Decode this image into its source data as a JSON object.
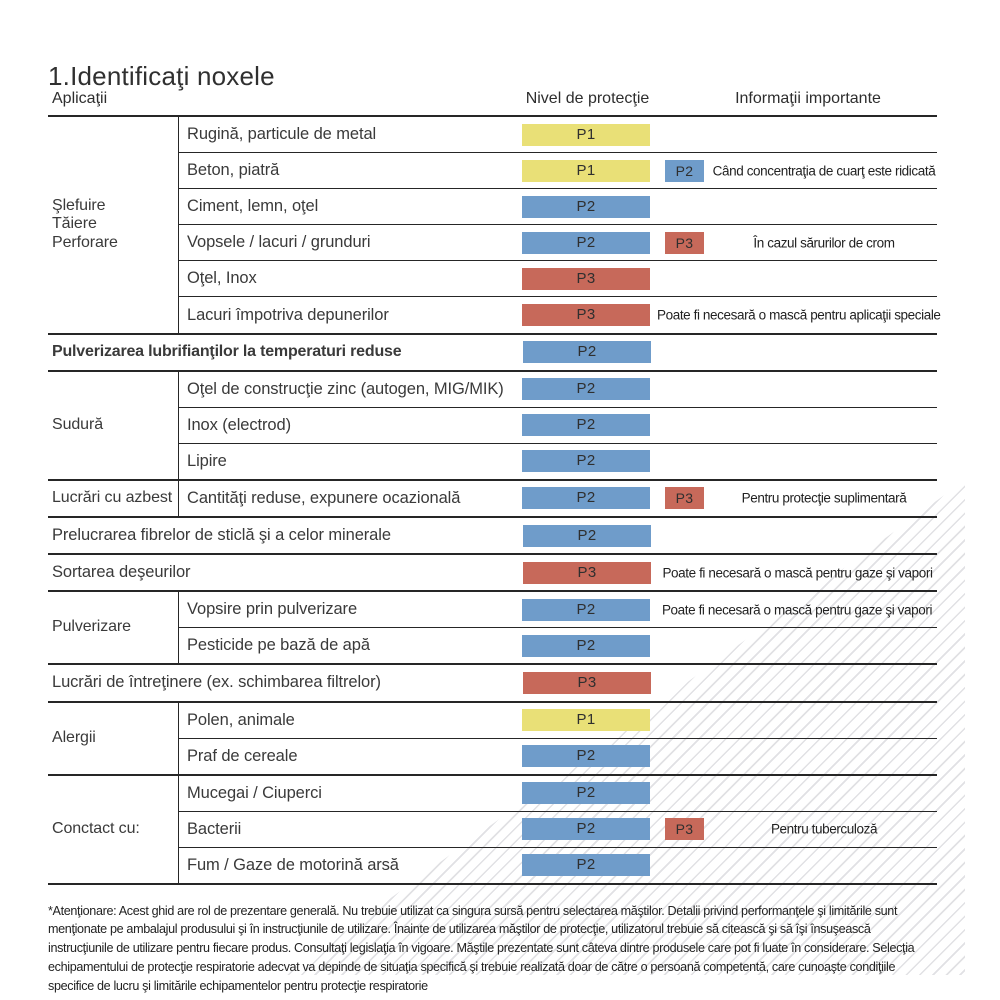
{
  "page": {
    "title": "1.Identificaţi noxele"
  },
  "header": {
    "applications": "Aplicaţii",
    "protection_level": "Nivel de protecţie",
    "important_info": "Informaţii importante"
  },
  "colors": {
    "p1": "#e9e077",
    "p2": "#6f9cca",
    "p3": "#c7695a",
    "line": "#262626"
  },
  "table": {
    "sections": [
      {
        "group": "Şlefuire\nTăiere\nPerforare",
        "rows": [
          {
            "label": "Rugină, particule de metal",
            "badge": "P1"
          },
          {
            "label": "Beton, piatră",
            "badge": "P1",
            "badge2": "P2",
            "note": "Când concentraţia de cuarţ este ridicată"
          },
          {
            "label": "Ciment, lemn, oţel",
            "badge": "P2"
          },
          {
            "label": "Vopsele / lacuri / grunduri",
            "badge": "P2",
            "badge2": "P3",
            "note": "În cazul sărurilor de crom"
          },
          {
            "label": "Oţel, Inox",
            "badge": "P3"
          },
          {
            "label": "Lacuri împotriva depunerilor",
            "badge": "P3",
            "note": "Poate fi necesară o mască pentru aplicaţii speciale"
          }
        ]
      },
      {
        "rows": [
          {
            "label": "Pulverizarea lubrifianţilor la temperaturi reduse",
            "badge": "P2"
          }
        ]
      },
      {
        "group": "Sudură",
        "rows": [
          {
            "label": "Oţel de construcţie zinc (autogen, MIG/MIK)",
            "badge": "P2"
          },
          {
            "label": "Inox (electrod)",
            "badge": "P2"
          },
          {
            "label": "Lipire",
            "badge": "P2"
          }
        ]
      },
      {
        "group": "Lucrări cu azbest",
        "rows": [
          {
            "label": "Cantităţi reduse, expunere ocazională",
            "badge": "P2",
            "badge2": "P3",
            "note": "Pentru protecţie suplimentară"
          }
        ]
      },
      {
        "rows": [
          {
            "label": "Prelucrarea fibrelor de sticlă şi a celor minerale",
            "badge": "P2"
          }
        ]
      },
      {
        "rows": [
          {
            "label": "Sortarea deşeurilor",
            "badge": "P3",
            "note": "Poate fi necesară o mască pentru gaze şi vapori"
          }
        ]
      },
      {
        "group": "Pulverizare",
        "rows": [
          {
            "label": "Vopsire prin pulverizare",
            "badge": "P2",
            "note": "Poate fi necesară o mască pentru gaze şi vapori"
          },
          {
            "label": "Pesticide pe bază de apă",
            "badge": "P2"
          }
        ]
      },
      {
        "rows": [
          {
            "label": "Lucrări de întreţinere (ex. schimbarea filtrelor)",
            "badge": "P3"
          }
        ]
      },
      {
        "group": "Alergii",
        "rows": [
          {
            "label": "Polen, animale",
            "badge": "P1"
          },
          {
            "label": "Praf de cereale",
            "badge": "P2"
          }
        ]
      },
      {
        "group": "Conctact cu:",
        "rows": [
          {
            "label": "Mucegai / Ciuperci",
            "badge": "P2"
          },
          {
            "label": "Bacterii",
            "badge": "P2",
            "badge2": "P3",
            "note": "Pentru tuberculoză"
          },
          {
            "label": "Fum / Gaze de motorină arsă",
            "badge": "P2"
          }
        ]
      }
    ]
  },
  "footnote": "*Atenţionare: Acest ghid are rol de prezentare generală. Nu trebuie utilizat ca singura sursă pentru selectarea măştilor. Detalii privind performanţele şi limitările sunt menţionate pe ambalajul produsului şi în instrucţiunile de utilizare. Înainte de utilizarea măştilor de protecţie, utilizatorul trebuie să citească şi să îşi însuşească instrucţiunile de utilizare pentru fiecare produs. Consultaţi legislaţia în vigoare. Măştile prezentate sunt câteva dintre produsele care pot fi luate în considerare. Selecţia echipamentului de protecţie respiratorie adecvat va depinde de situaţia specifică şi trebuie realizată doar de către o persoană competentă, care cunoaşte condiţiile specifice de lucru şi limitările echipamentelor pentru protecţie respiratorie"
}
